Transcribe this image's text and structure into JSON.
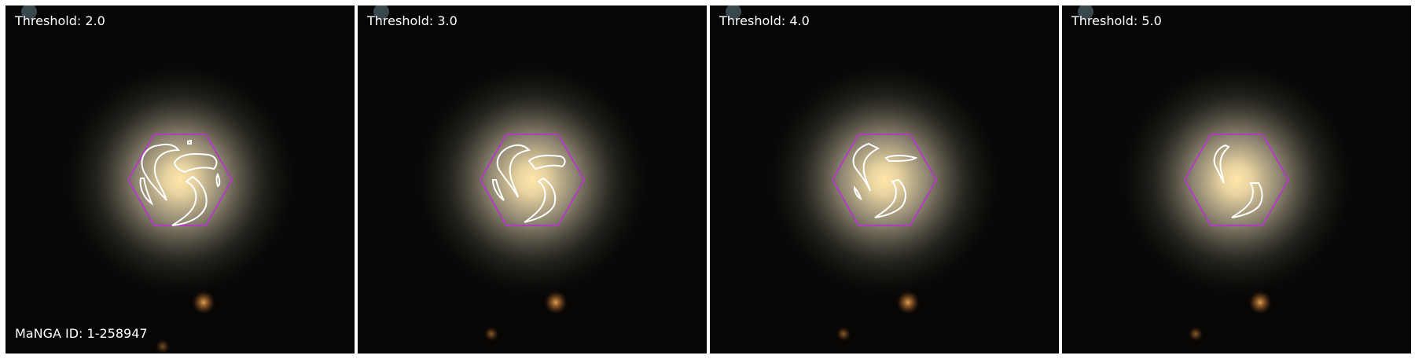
{
  "figure": {
    "manga_id_text": "MaNGA ID: 1-258947",
    "panels": [
      {
        "label": "Threshold: 2.0",
        "threshold": 2.0
      },
      {
        "label": "Threshold: 3.0",
        "threshold": 3.0
      },
      {
        "label": "Threshold: 4.0",
        "threshold": 4.0
      },
      {
        "label": "Threshold: 5.0",
        "threshold": 5.0
      }
    ]
  },
  "colors": {
    "background": "#070605",
    "galaxy_core": "#f6d79a",
    "ifu_hexagon": "#b03cc0",
    "contour": "#ffffff"
  }
}
